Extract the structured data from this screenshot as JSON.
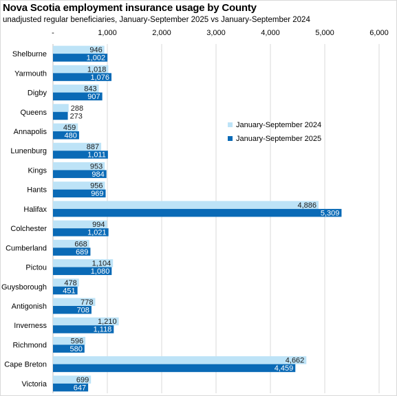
{
  "chart_data": {
    "type": "bar",
    "orientation": "horizontal",
    "title": "Nova Scotia employment insurance usage by County",
    "subtitle": "unadjusted regular beneficiaries,  January-September 2025 vs January-September 2024",
    "categories": [
      "Shelburne",
      "Yarmouth",
      "Digby",
      "Queens",
      "Annapolis",
      "Lunenburg",
      "Kings",
      "Hants",
      "Halifax",
      "Colchester",
      "Cumberland",
      "Pictou",
      "Guysborough",
      "Antigonish",
      "Inverness",
      "Richmond",
      "Cape Breton",
      "Victoria"
    ],
    "series": [
      {
        "name": "January-September 2024",
        "color": "#bde3f7",
        "values": [
          946,
          1018,
          843,
          288,
          459,
          887,
          953,
          956,
          4886,
          994,
          668,
          1104,
          478,
          778,
          1210,
          596,
          4662,
          699
        ],
        "labels": [
          "946",
          "1,018",
          "843",
          "288",
          "459",
          "887",
          "953",
          "956",
          "4,886",
          "994",
          "668",
          "1,104",
          "478",
          "778",
          "1,210",
          "596",
          "4,662",
          "699"
        ]
      },
      {
        "name": "January-September 2025",
        "color": "#0a6ab6",
        "values": [
          1002,
          1076,
          907,
          273,
          480,
          1011,
          984,
          969,
          5309,
          1021,
          689,
          1080,
          451,
          708,
          1118,
          580,
          4459,
          647
        ],
        "labels": [
          "1,002",
          "1,076",
          "907",
          "273",
          "480",
          "1,011",
          "984",
          "969",
          "5,309",
          "1,021",
          "689",
          "1,080",
          "451",
          "708",
          "1,118",
          "580",
          "4,459",
          "647"
        ]
      }
    ],
    "xlim": [
      0,
      6000
    ],
    "xticks": [
      0,
      1000,
      2000,
      3000,
      4000,
      5000,
      6000
    ],
    "xtick_labels": [
      "-",
      "1,000",
      "2,000",
      "3,000",
      "4,000",
      "5,000",
      "6,000"
    ],
    "grid": "vertical",
    "legend_position": "right"
  }
}
